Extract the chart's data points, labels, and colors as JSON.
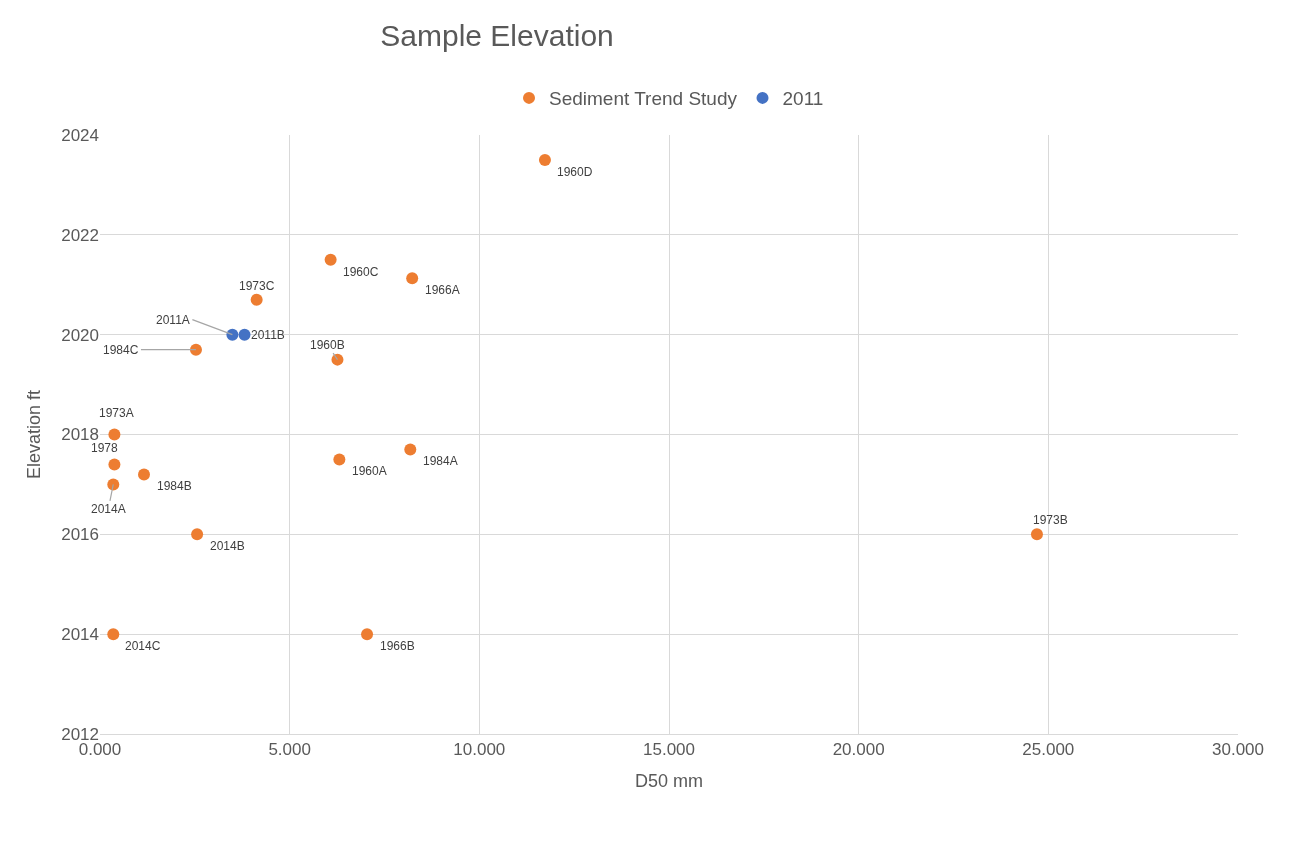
{
  "chart_data": {
    "type": "scatter",
    "title": "Sample Elevation",
    "xlabel": "D50 mm",
    "ylabel": "Elevation ft",
    "series": [
      {
        "name": "Sediment Trend Study",
        "color": "#ed7d31",
        "x": [
          11.73,
          6.08,
          8.23,
          4.13,
          2.53,
          6.26,
          0.38,
          0.38,
          0.35,
          1.16,
          6.31,
          8.18,
          2.56,
          24.7,
          0.35,
          7.04
        ],
        "values": [
          2023.5,
          2021.5,
          2021.13,
          2020.7,
          2019.7,
          2019.5,
          2018,
          2017.4,
          2017,
          2017.2,
          2017.5,
          2017.7,
          2016,
          2016,
          2014,
          2014
        ]
      },
      {
        "name": "2011",
        "color": "#4472c4",
        "x": [
          3.49,
          3.81
        ],
        "values": [
          2020,
          2020
        ]
      }
    ],
    "annotations": [
      {
        "text": "1960D",
        "x": 11.73,
        "y": 2023.5
      },
      {
        "text": "1960C",
        "x": 6.08,
        "y": 2021.5
      },
      {
        "text": "1966A",
        "x": 8.23,
        "y": 2021.13
      },
      {
        "text": "1973C",
        "x": 4.13,
        "y": 2020.7
      },
      {
        "text": "1984C",
        "x": 2.53,
        "y": 2019.7
      },
      {
        "text": "1960B",
        "x": 6.26,
        "y": 2019.5
      },
      {
        "text": "1973A",
        "x": 0.38,
        "y": 2018
      },
      {
        "text": "1978",
        "x": 0.38,
        "y": 2017.4
      },
      {
        "text": "2014A",
        "x": 0.35,
        "y": 2017
      },
      {
        "text": "1984B",
        "x": 1.16,
        "y": 2017.2
      },
      {
        "text": "1960A",
        "x": 6.31,
        "y": 2017.5
      },
      {
        "text": "1984A",
        "x": 8.18,
        "y": 2017.7
      },
      {
        "text": "2014B",
        "x": 2.56,
        "y": 2016
      },
      {
        "text": "1973B",
        "x": 24.7,
        "y": 2016
      },
      {
        "text": "2014C",
        "x": 0.35,
        "y": 2014
      },
      {
        "text": "1966B",
        "x": 7.04,
        "y": 2014
      },
      {
        "text": "2011A",
        "x": 3.49,
        "y": 2020
      },
      {
        "text": "2011B",
        "x": 3.81,
        "y": 2020
      }
    ],
    "xlim": [
      0,
      30
    ],
    "xticks": [
      {
        "value": 0,
        "label": "0.000"
      },
      {
        "value": 5,
        "label": "5.000"
      },
      {
        "value": 10,
        "label": "10.000"
      },
      {
        "value": 15,
        "label": "15.000"
      },
      {
        "value": 20,
        "label": "20.000"
      },
      {
        "value": 25,
        "label": "25.000"
      },
      {
        "value": 30,
        "label": "30.000"
      }
    ],
    "ylim": [
      2012,
      2024
    ],
    "yticks": [
      2012,
      2014,
      2016,
      2018,
      2020,
      2022,
      2024
    ],
    "grid": true,
    "legend": "top",
    "marker": "circle"
  }
}
